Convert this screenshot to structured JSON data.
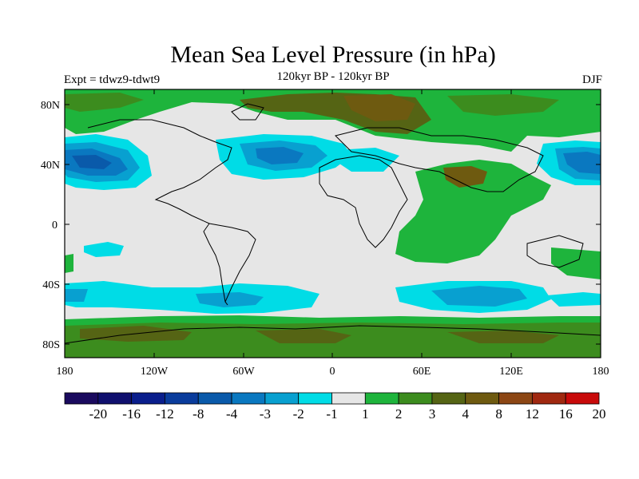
{
  "title": "Mean Sea Level Pressure (in hPa)",
  "subtitle_left": "Expt = tdwz9-tdwt9",
  "subtitle_center": "120kyr BP - 120kyr BP",
  "subtitle_right": "DJF",
  "axes": {
    "y_ticks": [
      "80N",
      "40N",
      "0",
      "40S",
      "80S"
    ],
    "x_ticks": [
      "180",
      "120W",
      "60W",
      "0",
      "60E",
      "120E",
      "180"
    ]
  },
  "colorbar": {
    "labels": [
      "-20",
      "-16",
      "-12",
      "-8",
      "-4",
      "-3",
      "-2",
      "-1",
      "1",
      "2",
      "3",
      "4",
      "8",
      "12",
      "16",
      "20"
    ],
    "colors": [
      "#1a0a5e",
      "#10106e",
      "#0a1e8c",
      "#0a3c9c",
      "#0a5aaa",
      "#0a78c0",
      "#08a0d0",
      "#00dce6",
      "#e6e6e6",
      "#1eb43c",
      "#3c8c1e",
      "#556414",
      "#6e5a10",
      "#8c4614",
      "#a02810",
      "#c80a0a"
    ]
  },
  "colors": {
    "neutral": "#e6e6e6",
    "green": "#1eb43c",
    "olive": "#3c8c1e",
    "dark_olive": "#556414",
    "brown": "#6e5a10",
    "cyan": "#00dce6",
    "mid_blue": "#08a0d0",
    "blue": "#0a78c0",
    "deep_blue": "#0a5aaa"
  }
}
